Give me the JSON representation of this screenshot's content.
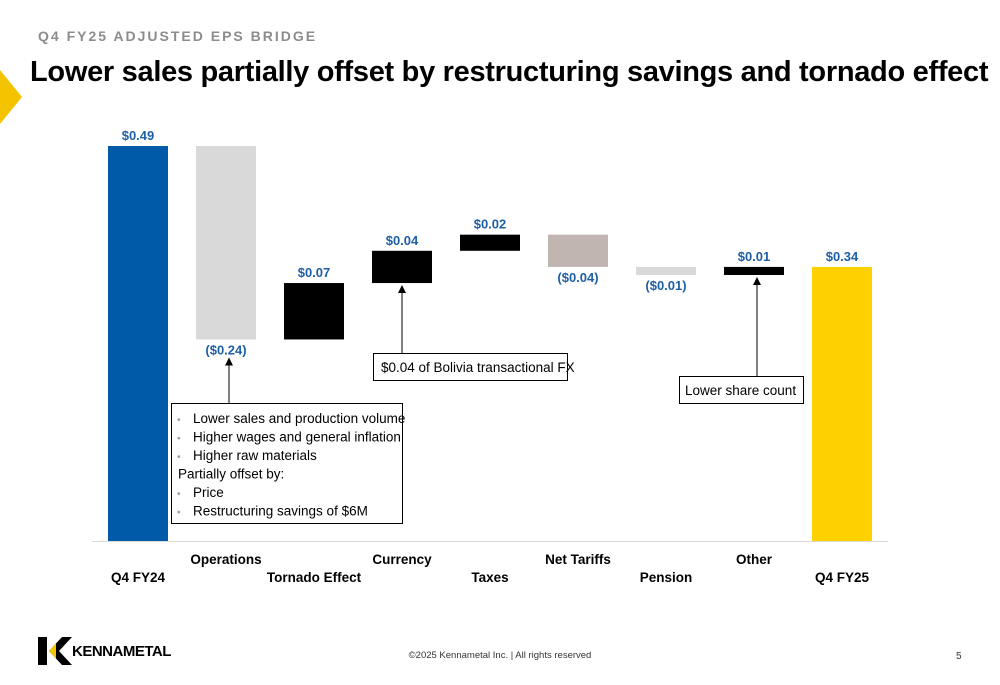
{
  "header": {
    "eyebrow": "Q4 FY25 ADJUSTED EPS BRIDGE",
    "title": "Lower sales partially offset by restructuring savings and tornado effect"
  },
  "chart_data": {
    "type": "waterfall",
    "categories": [
      "Q4 FY24",
      "Operations",
      "Tornado Effect",
      "Currency",
      "Taxes",
      "Net Tariffs",
      "Pension",
      "Other",
      "Q4 FY25"
    ],
    "values": [
      0.49,
      -0.24,
      0.07,
      0.04,
      0.02,
      -0.04,
      -0.01,
      0.01,
      0.34
    ],
    "kinds": [
      "total",
      "delta",
      "delta",
      "delta",
      "delta",
      "delta",
      "delta",
      "delta",
      "total"
    ],
    "data_labels": [
      "$0.49",
      "($0.24)",
      "$0.07",
      "$0.04",
      "$0.02",
      "($0.04)",
      "($0.01)",
      "$0.01",
      "$0.34"
    ],
    "bar_colors": [
      "#005aa7",
      "#d9d9d9",
      "#000000",
      "#000000",
      "#000000",
      "#c0b5b0",
      "#d9d9d9",
      "#000000",
      "#ffd100"
    ],
    "label_color": "#1f5fa6",
    "ylim": [
      0,
      0.49
    ],
    "grid": false,
    "annotations": {
      "currency_note": "$0.04 of Bolivia transactional FX",
      "other_note": "Lower share count",
      "operations_bullets": [
        "Lower sales and production volume",
        "Higher wages and general inflation",
        "Higher raw materials"
      ],
      "operations_offset_heading": "Partially offset by:",
      "operations_offset_bullets": [
        "Price",
        "Restructuring savings of $6M"
      ]
    }
  },
  "footer": {
    "logo": "KENNAMETAL",
    "copyright": "©2025 Kennametal Inc.  |  All rights reserved",
    "page": "5"
  },
  "colors": {
    "brand_yellow": "#ffd100",
    "brand_blue": "#005aa7"
  }
}
